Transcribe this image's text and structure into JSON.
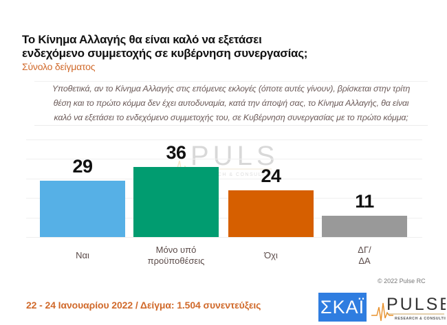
{
  "header": {
    "title_line1": "Το Κίνημα Αλλαγής θα είναι καλό να εξετάσει",
    "title_line2": "ενδεχόμενο συμμετοχής σε κυβέρνηση συνεργασίας;",
    "subtitle": "Σύνολο δείγματος"
  },
  "question": {
    "line1": "Υποθετικά, αν το Κίνημα Αλλαγής στις επόμενες εκλογές (όποτε αυτές γίνουν), βρίσκεται στην τρίτη",
    "line2": "θέση και το πρώτο κόμμα δεν έχει αυτοδυναμία, κατά την άποψή σας, το Κίνημα Αλλαγής, θα είναι",
    "line3": "καλό να εξετάσει το ενδεχόμενο συμμετοχής του, σε Κυβέρνηση συνεργασίας με το πρώτο κόμμα;"
  },
  "chart_data": {
    "type": "bar",
    "title": "Το Κίνημα Αλλαγής θα είναι καλό να εξετάσει ενδεχόμενο συμμετοχής σε κυβέρνηση συνεργασίας;",
    "subtitle": "Σύνολο δείγματος",
    "categories": [
      "Ναι",
      "Μόνο υπό προϋποθέσεις",
      "Όχι",
      "ΔΓ/ΔΑ"
    ],
    "category_lines": [
      [
        "Ναι"
      ],
      [
        "Μόνο υπό",
        "προϋποθέσεις"
      ],
      [
        "Όχι"
      ],
      [
        "ΔΓ/",
        "ΔΑ"
      ]
    ],
    "values": [
      29,
      36,
      24,
      11
    ],
    "value_labels": [
      "29",
      "36",
      "24",
      "11"
    ],
    "colors": [
      "#56b0e6",
      "#019c70",
      "#d65f00",
      "#999999"
    ],
    "xlabel": "",
    "ylabel": "",
    "ylim": [
      0,
      50
    ],
    "grid": true,
    "legend": "none"
  },
  "watermark": {
    "brand": "PULSE",
    "tagline": "RESEARCH & CONSULTING"
  },
  "footer": {
    "copyright": "© 2022 Pulse RC",
    "fieldwork": "22 - 24 Ιανουαρίου 2022  /  Δείγμα:  1.504 συνεντεύξεις",
    "logo_skai": "ΣΚΑΪ",
    "logo_pulse": "PULSE",
    "logo_pulse_tagline": "RESEARCH & CONSULTING"
  }
}
